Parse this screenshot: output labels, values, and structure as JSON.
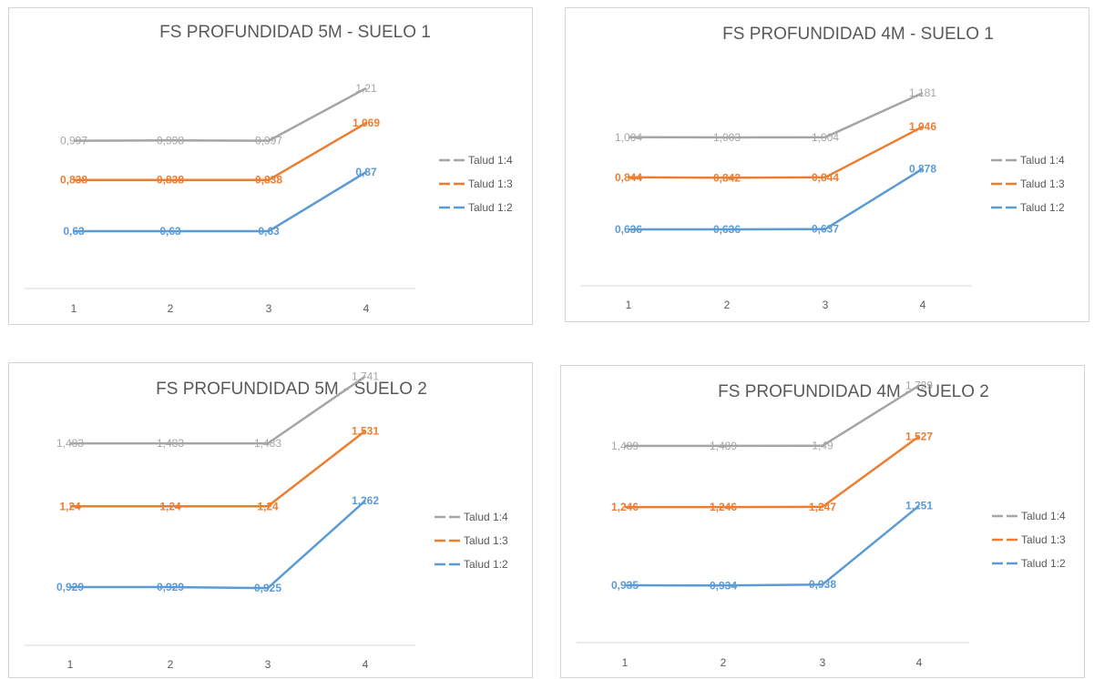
{
  "chart_data": [
    {
      "type": "line",
      "title": "FS PROFUNDIDAD 5M - SUELO 1",
      "categories": [
        "1",
        "2",
        "3",
        "4"
      ],
      "series": [
        {
          "name": "Talud 1:4",
          "values": [
            0.997,
            0.998,
            0.997,
            1.21
          ],
          "labels": [
            "0,997",
            "0,998",
            "0,997",
            "1,21"
          ],
          "color": "#a5a5a5",
          "bold_labels": false
        },
        {
          "name": "Talud 1:3",
          "values": [
            0.838,
            0.838,
            0.838,
            1.069
          ],
          "labels": [
            "0,838",
            "0,838",
            "0,838",
            "1,069"
          ],
          "color": "#ed7d31",
          "bold_labels": true
        },
        {
          "name": "Talud 1:2",
          "values": [
            0.63,
            0.63,
            0.63,
            0.87
          ],
          "labels": [
            "0,63",
            "0,63",
            "0,63",
            "0,87"
          ],
          "color": "#5b9bd5",
          "bold_labels": true
        }
      ],
      "legend": "right",
      "grid": false
    },
    {
      "type": "line",
      "title": "FS PROFUNDIDAD 4M - SUELO 1",
      "categories": [
        "1",
        "2",
        "3",
        "4"
      ],
      "series": [
        {
          "name": "Talud 1:4",
          "values": [
            1.004,
            1.003,
            1.004,
            1.181
          ],
          "labels": [
            "1,004",
            "1,003",
            "1,004",
            "1,181"
          ],
          "color": "#a5a5a5",
          "bold_labels": false
        },
        {
          "name": "Talud 1:3",
          "values": [
            0.844,
            0.842,
            0.844,
            1.046
          ],
          "labels": [
            "0,844",
            "0,842",
            "0,844",
            "1,046"
          ],
          "color": "#ed7d31",
          "bold_labels": true
        },
        {
          "name": "Talud 1:2",
          "values": [
            0.636,
            0.636,
            0.637,
            0.878
          ],
          "labels": [
            "0,636",
            "0,636",
            "0,637",
            "0,878"
          ],
          "color": "#5b9bd5",
          "bold_labels": true
        }
      ],
      "legend": "right",
      "grid": false
    },
    {
      "type": "line",
      "title": "FS PROFUNDIDAD 5M - SUELO 2",
      "categories": [
        "1",
        "2",
        "3",
        "4"
      ],
      "series": [
        {
          "name": "Talud 1:4",
          "values": [
            1.483,
            1.483,
            1.483,
            1.741
          ],
          "labels": [
            "1,483",
            "1,483",
            "1,483",
            "1,741"
          ],
          "color": "#a5a5a5",
          "bold_labels": false
        },
        {
          "name": "Talud 1:3",
          "values": [
            1.24,
            1.24,
            1.24,
            1.531
          ],
          "labels": [
            "1,24",
            "1,24",
            "1,24",
            "1,531"
          ],
          "color": "#ed7d31",
          "bold_labels": true
        },
        {
          "name": "Talud 1:2",
          "values": [
            0.929,
            0.929,
            0.925,
            1.262
          ],
          "labels": [
            "0,929",
            "0,929",
            "0,925",
            "1,262"
          ],
          "color": "#5b9bd5",
          "bold_labels": true
        }
      ],
      "legend": "right",
      "grid": false
    },
    {
      "type": "line",
      "title": "FS PROFUNDIDAD 4M - SUELO 2",
      "categories": [
        "1",
        "2",
        "3",
        "4"
      ],
      "series": [
        {
          "name": "Talud 1:4",
          "values": [
            1.489,
            1.489,
            1.49,
            1.729
          ],
          "labels": [
            "1,489",
            "1,489",
            "1,49",
            "1,729"
          ],
          "color": "#a5a5a5",
          "bold_labels": false
        },
        {
          "name": "Talud 1:3",
          "values": [
            1.246,
            1.246,
            1.247,
            1.527
          ],
          "labels": [
            "1,246",
            "1,246",
            "1,247",
            "1,527"
          ],
          "color": "#ed7d31",
          "bold_labels": true
        },
        {
          "name": "Talud 1:2",
          "values": [
            0.935,
            0.934,
            0.938,
            1.251
          ],
          "labels": [
            "0,935",
            "0,934",
            "0,938",
            "1,251"
          ],
          "color": "#5b9bd5",
          "bold_labels": true
        }
      ],
      "legend": "right",
      "grid": false
    }
  ]
}
